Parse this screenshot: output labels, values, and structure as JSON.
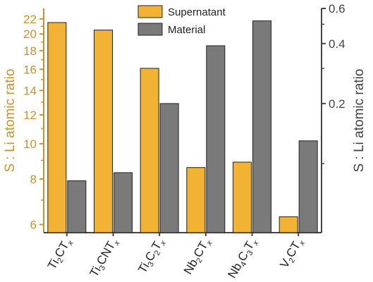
{
  "chart_data": {
    "type": "bar",
    "categories": [
      {
        "label": "Ti2CTx",
        "parts": [
          [
            "Ti",
            ""
          ],
          [
            "2",
            "sub"
          ],
          [
            "CT",
            ""
          ],
          [
            "x",
            "subi"
          ]
        ]
      },
      {
        "label": "Ti3CNTx",
        "parts": [
          [
            "Ti",
            ""
          ],
          [
            "3",
            "sub"
          ],
          [
            "CNT",
            ""
          ],
          [
            "x",
            "subi"
          ]
        ]
      },
      {
        "label": "Ti3C2Tx",
        "parts": [
          [
            "Ti",
            ""
          ],
          [
            "3",
            "sub"
          ],
          [
            "C",
            ""
          ],
          [
            "2",
            "sub"
          ],
          [
            "T",
            ""
          ],
          [
            "x",
            "subi"
          ]
        ]
      },
      {
        "label": "Nb2CTx",
        "parts": [
          [
            "Nb",
            ""
          ],
          [
            "2",
            "sub"
          ],
          [
            "CT",
            ""
          ],
          [
            "x",
            "subi"
          ]
        ]
      },
      {
        "label": "Nb4C3Tx",
        "parts": [
          [
            "Nb",
            ""
          ],
          [
            "4",
            "sub"
          ],
          [
            "C",
            ""
          ],
          [
            "3",
            "sub"
          ],
          [
            "T",
            ""
          ],
          [
            "x",
            "subi"
          ]
        ]
      },
      {
        "label": "V2CTx",
        "parts": [
          [
            "V",
            ""
          ],
          [
            "2",
            "sub"
          ],
          [
            "CT",
            ""
          ],
          [
            "x",
            "subi"
          ]
        ]
      }
    ],
    "series": [
      {
        "name": "Supernatant",
        "axis": "left",
        "color": "#f2b234",
        "values": [
          21.5,
          20.5,
          16.1,
          8.6,
          8.9,
          6.3
        ]
      },
      {
        "name": "Material",
        "axis": "right",
        "color": "#7a7a7a",
        "values": [
          0.082,
          0.09,
          0.2,
          0.39,
          0.52,
          0.13
        ]
      }
    ],
    "left_axis": {
      "title": "S : Li atomic ratio",
      "color": "#c8922a",
      "scale": "log",
      "ylim": [
        5.7,
        23.5
      ],
      "ticks": [
        6,
        8,
        10,
        12,
        14,
        16,
        18,
        20,
        22
      ]
    },
    "right_axis": {
      "title": "S : Li atomic ratio",
      "color": "#444444",
      "scale": "log",
      "ylim": [
        0.045,
        0.6
      ],
      "ticks": [
        0.2,
        0.4,
        0.6
      ],
      "tick_labels": [
        "0.2",
        "0.4",
        "0.6"
      ]
    },
    "legend_position": "top-center",
    "grid": false
  }
}
